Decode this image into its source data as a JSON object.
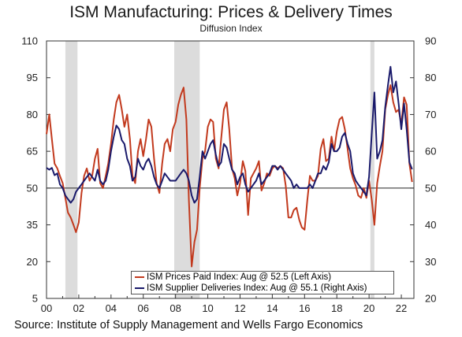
{
  "title": "ISM Manufacturing: Prices & Delivery Times",
  "subtitle": "Diffusion Index",
  "source": "Source: Institute of Supply Management and Wells Fargo Economics",
  "colors": {
    "prices": "#c23a1e",
    "deliveries": "#1a1a6b",
    "recession": "#dcdcdc",
    "axis": "#333333"
  },
  "chart_data": {
    "type": "line",
    "title": "ISM Manufacturing: Prices & Delivery Times",
    "subtitle": "Diffusion Index",
    "x_range": [
      2000,
      2022.67
    ],
    "x_ticks": [
      {
        "value": 2000,
        "label": "00"
      },
      {
        "value": 2002,
        "label": "02"
      },
      {
        "value": 2004,
        "label": "04"
      },
      {
        "value": 2006,
        "label": "06"
      },
      {
        "value": 2008,
        "label": "08"
      },
      {
        "value": 2010,
        "label": "10"
      },
      {
        "value": 2012,
        "label": "12"
      },
      {
        "value": 2014,
        "label": "14"
      },
      {
        "value": 2016,
        "label": "16"
      },
      {
        "value": 2018,
        "label": "18"
      },
      {
        "value": 2020,
        "label": "20"
      },
      {
        "value": 2022,
        "label": "22"
      }
    ],
    "y_left": {
      "range": [
        5,
        110
      ],
      "ticks": [
        5,
        20,
        35,
        50,
        65,
        80,
        95,
        110
      ]
    },
    "y_right": {
      "range": [
        20,
        90
      ],
      "ticks": [
        20,
        30,
        40,
        50,
        60,
        70,
        80,
        90
      ]
    },
    "reference_line": 50,
    "recessions": [
      [
        2001.17,
        2001.92
      ],
      [
        2007.92,
        2009.5
      ],
      [
        2020.08,
        2020.33
      ]
    ],
    "series": [
      {
        "name": "ISM Prices Paid Index: Aug @ 52.5 (Left Axis)",
        "axis": "left",
        "points": [
          [
            2000.0,
            72
          ],
          [
            2000.17,
            80
          ],
          [
            2000.33,
            70
          ],
          [
            2000.5,
            60
          ],
          [
            2000.67,
            58
          ],
          [
            2000.83,
            55
          ],
          [
            2001.0,
            52
          ],
          [
            2001.17,
            46
          ],
          [
            2001.33,
            40
          ],
          [
            2001.5,
            38
          ],
          [
            2001.67,
            35
          ],
          [
            2001.83,
            32
          ],
          [
            2002.0,
            36
          ],
          [
            2002.17,
            48
          ],
          [
            2002.33,
            55
          ],
          [
            2002.5,
            58
          ],
          [
            2002.67,
            53
          ],
          [
            2002.83,
            55
          ],
          [
            2003.0,
            62
          ],
          [
            2003.17,
            66
          ],
          [
            2003.33,
            52
          ],
          [
            2003.5,
            50
          ],
          [
            2003.67,
            55
          ],
          [
            2003.83,
            60
          ],
          [
            2004.0,
            68
          ],
          [
            2004.17,
            78
          ],
          [
            2004.33,
            85
          ],
          [
            2004.5,
            88
          ],
          [
            2004.67,
            82
          ],
          [
            2004.83,
            75
          ],
          [
            2005.0,
            80
          ],
          [
            2005.17,
            70
          ],
          [
            2005.33,
            55
          ],
          [
            2005.5,
            52
          ],
          [
            2005.67,
            65
          ],
          [
            2005.83,
            70
          ],
          [
            2006.0,
            63
          ],
          [
            2006.17,
            70
          ],
          [
            2006.33,
            78
          ],
          [
            2006.5,
            75
          ],
          [
            2006.67,
            62
          ],
          [
            2006.83,
            52
          ],
          [
            2007.0,
            48
          ],
          [
            2007.17,
            60
          ],
          [
            2007.33,
            68
          ],
          [
            2007.5,
            70
          ],
          [
            2007.67,
            65
          ],
          [
            2007.83,
            74
          ],
          [
            2008.0,
            77
          ],
          [
            2008.17,
            84
          ],
          [
            2008.33,
            88
          ],
          [
            2008.5,
            91
          ],
          [
            2008.67,
            78
          ],
          [
            2008.83,
            45
          ],
          [
            2009.0,
            18
          ],
          [
            2009.17,
            28
          ],
          [
            2009.33,
            33
          ],
          [
            2009.5,
            50
          ],
          [
            2009.67,
            62
          ],
          [
            2009.83,
            65
          ],
          [
            2010.0,
            75
          ],
          [
            2010.17,
            78
          ],
          [
            2010.33,
            77
          ],
          [
            2010.5,
            62
          ],
          [
            2010.67,
            58
          ],
          [
            2010.83,
            70
          ],
          [
            2011.0,
            82
          ],
          [
            2011.17,
            85
          ],
          [
            2011.33,
            74
          ],
          [
            2011.5,
            58
          ],
          [
            2011.67,
            54
          ],
          [
            2011.83,
            47
          ],
          [
            2012.0,
            52
          ],
          [
            2012.17,
            61
          ],
          [
            2012.33,
            57
          ],
          [
            2012.5,
            39
          ],
          [
            2012.67,
            54
          ],
          [
            2012.83,
            56
          ],
          [
            2013.0,
            58
          ],
          [
            2013.17,
            61
          ],
          [
            2013.33,
            49
          ],
          [
            2013.5,
            52
          ],
          [
            2013.67,
            56
          ],
          [
            2013.83,
            55
          ],
          [
            2014.0,
            58
          ],
          [
            2014.17,
            59
          ],
          [
            2014.33,
            58
          ],
          [
            2014.5,
            59
          ],
          [
            2014.67,
            58
          ],
          [
            2014.83,
            51
          ],
          [
            2015.0,
            38
          ],
          [
            2015.17,
            38
          ],
          [
            2015.33,
            41
          ],
          [
            2015.5,
            42
          ],
          [
            2015.67,
            37
          ],
          [
            2015.83,
            34
          ],
          [
            2016.0,
            33
          ],
          [
            2016.17,
            45
          ],
          [
            2016.33,
            55
          ],
          [
            2016.5,
            53
          ],
          [
            2016.67,
            53
          ],
          [
            2016.83,
            55
          ],
          [
            2017.0,
            66
          ],
          [
            2017.17,
            70
          ],
          [
            2017.33,
            61
          ],
          [
            2017.5,
            62
          ],
          [
            2017.67,
            71
          ],
          [
            2017.83,
            65
          ],
          [
            2018.0,
            73
          ],
          [
            2018.17,
            78
          ],
          [
            2018.33,
            79
          ],
          [
            2018.5,
            74
          ],
          [
            2018.67,
            66
          ],
          [
            2018.83,
            58
          ],
          [
            2019.0,
            54
          ],
          [
            2019.17,
            51
          ],
          [
            2019.33,
            47
          ],
          [
            2019.5,
            46
          ],
          [
            2019.67,
            50
          ],
          [
            2019.83,
            46
          ],
          [
            2020.0,
            53
          ],
          [
            2020.17,
            45
          ],
          [
            2020.33,
            35
          ],
          [
            2020.5,
            52
          ],
          [
            2020.67,
            59
          ],
          [
            2020.83,
            65
          ],
          [
            2021.0,
            82
          ],
          [
            2021.17,
            88
          ],
          [
            2021.33,
            92
          ],
          [
            2021.5,
            85
          ],
          [
            2021.67,
            81
          ],
          [
            2021.83,
            82
          ],
          [
            2022.0,
            76
          ],
          [
            2022.17,
            87
          ],
          [
            2022.33,
            84
          ],
          [
            2022.5,
            60
          ],
          [
            2022.67,
            52.5
          ]
        ]
      },
      {
        "name": "ISM Supplier Deliveries Index: Aug @ 55.1 (Right Axis)",
        "axis": "right",
        "points": [
          [
            2000.0,
            55.5
          ],
          [
            2000.17,
            55
          ],
          [
            2000.33,
            55.5
          ],
          [
            2000.5,
            53.5
          ],
          [
            2000.67,
            54
          ],
          [
            2000.83,
            51
          ],
          [
            2001.0,
            50
          ],
          [
            2001.17,
            48
          ],
          [
            2001.33,
            47
          ],
          [
            2001.5,
            46
          ],
          [
            2001.67,
            47
          ],
          [
            2001.83,
            49
          ],
          [
            2002.0,
            50
          ],
          [
            2002.17,
            51
          ],
          [
            2002.33,
            52
          ],
          [
            2002.5,
            53
          ],
          [
            2002.67,
            54
          ],
          [
            2002.83,
            53
          ],
          [
            2003.0,
            52
          ],
          [
            2003.17,
            55
          ],
          [
            2003.33,
            52
          ],
          [
            2003.5,
            51
          ],
          [
            2003.67,
            52
          ],
          [
            2003.83,
            55
          ],
          [
            2004.0,
            60
          ],
          [
            2004.17,
            64
          ],
          [
            2004.33,
            67
          ],
          [
            2004.5,
            66
          ],
          [
            2004.67,
            63
          ],
          [
            2004.83,
            62
          ],
          [
            2005.0,
            58
          ],
          [
            2005.17,
            56
          ],
          [
            2005.33,
            52
          ],
          [
            2005.5,
            53
          ],
          [
            2005.67,
            58
          ],
          [
            2005.83,
            56
          ],
          [
            2006.0,
            55
          ],
          [
            2006.17,
            57
          ],
          [
            2006.33,
            58
          ],
          [
            2006.5,
            56
          ],
          [
            2006.67,
            53
          ],
          [
            2006.83,
            51
          ],
          [
            2007.0,
            50
          ],
          [
            2007.17,
            52
          ],
          [
            2007.33,
            54
          ],
          [
            2007.5,
            53
          ],
          [
            2007.67,
            52
          ],
          [
            2007.83,
            52
          ],
          [
            2008.0,
            52
          ],
          [
            2008.17,
            53
          ],
          [
            2008.33,
            54
          ],
          [
            2008.5,
            55
          ],
          [
            2008.67,
            54
          ],
          [
            2008.83,
            52
          ],
          [
            2009.0,
            48
          ],
          [
            2009.17,
            46
          ],
          [
            2009.33,
            47
          ],
          [
            2009.5,
            53
          ],
          [
            2009.67,
            60
          ],
          [
            2009.83,
            58
          ],
          [
            2010.0,
            60
          ],
          [
            2010.17,
            62
          ],
          [
            2010.33,
            63
          ],
          [
            2010.5,
            59
          ],
          [
            2010.67,
            56
          ],
          [
            2010.83,
            57
          ],
          [
            2011.0,
            62
          ],
          [
            2011.17,
            61
          ],
          [
            2011.33,
            58
          ],
          [
            2011.5,
            55
          ],
          [
            2011.67,
            54
          ],
          [
            2011.83,
            51
          ],
          [
            2012.0,
            53
          ],
          [
            2012.17,
            54
          ],
          [
            2012.33,
            51
          ],
          [
            2012.5,
            49
          ],
          [
            2012.67,
            50
          ],
          [
            2012.83,
            51
          ],
          [
            2013.0,
            52
          ],
          [
            2013.17,
            54
          ],
          [
            2013.33,
            51
          ],
          [
            2013.5,
            52
          ],
          [
            2013.67,
            53
          ],
          [
            2013.83,
            54
          ],
          [
            2014.0,
            56
          ],
          [
            2014.17,
            56
          ],
          [
            2014.33,
            55
          ],
          [
            2014.5,
            56
          ],
          [
            2014.67,
            55
          ],
          [
            2014.83,
            54
          ],
          [
            2015.0,
            53
          ],
          [
            2015.17,
            52
          ],
          [
            2015.33,
            50
          ],
          [
            2015.5,
            51
          ],
          [
            2015.67,
            50
          ],
          [
            2015.83,
            50
          ],
          [
            2016.0,
            50
          ],
          [
            2016.17,
            50
          ],
          [
            2016.33,
            51
          ],
          [
            2016.5,
            50
          ],
          [
            2016.67,
            52
          ],
          [
            2016.83,
            54
          ],
          [
            2017.0,
            54
          ],
          [
            2017.17,
            56
          ],
          [
            2017.33,
            55
          ],
          [
            2017.5,
            57
          ],
          [
            2017.67,
            62
          ],
          [
            2017.83,
            60
          ],
          [
            2018.0,
            60
          ],
          [
            2018.17,
            61
          ],
          [
            2018.33,
            64
          ],
          [
            2018.5,
            65
          ],
          [
            2018.67,
            62
          ],
          [
            2018.83,
            60
          ],
          [
            2019.0,
            54
          ],
          [
            2019.17,
            52
          ],
          [
            2019.33,
            51
          ],
          [
            2019.5,
            50
          ],
          [
            2019.67,
            49
          ],
          [
            2019.83,
            48
          ],
          [
            2020.0,
            53
          ],
          [
            2020.17,
            65
          ],
          [
            2020.33,
            76
          ],
          [
            2020.5,
            58
          ],
          [
            2020.67,
            60
          ],
          [
            2020.83,
            63
          ],
          [
            2021.0,
            72
          ],
          [
            2021.17,
            78
          ],
          [
            2021.33,
            83
          ],
          [
            2021.5,
            76
          ],
          [
            2021.67,
            79
          ],
          [
            2021.83,
            73
          ],
          [
            2022.0,
            66
          ],
          [
            2022.17,
            73
          ],
          [
            2022.33,
            66
          ],
          [
            2022.5,
            57
          ],
          [
            2022.67,
            55.1
          ]
        ]
      }
    ]
  }
}
